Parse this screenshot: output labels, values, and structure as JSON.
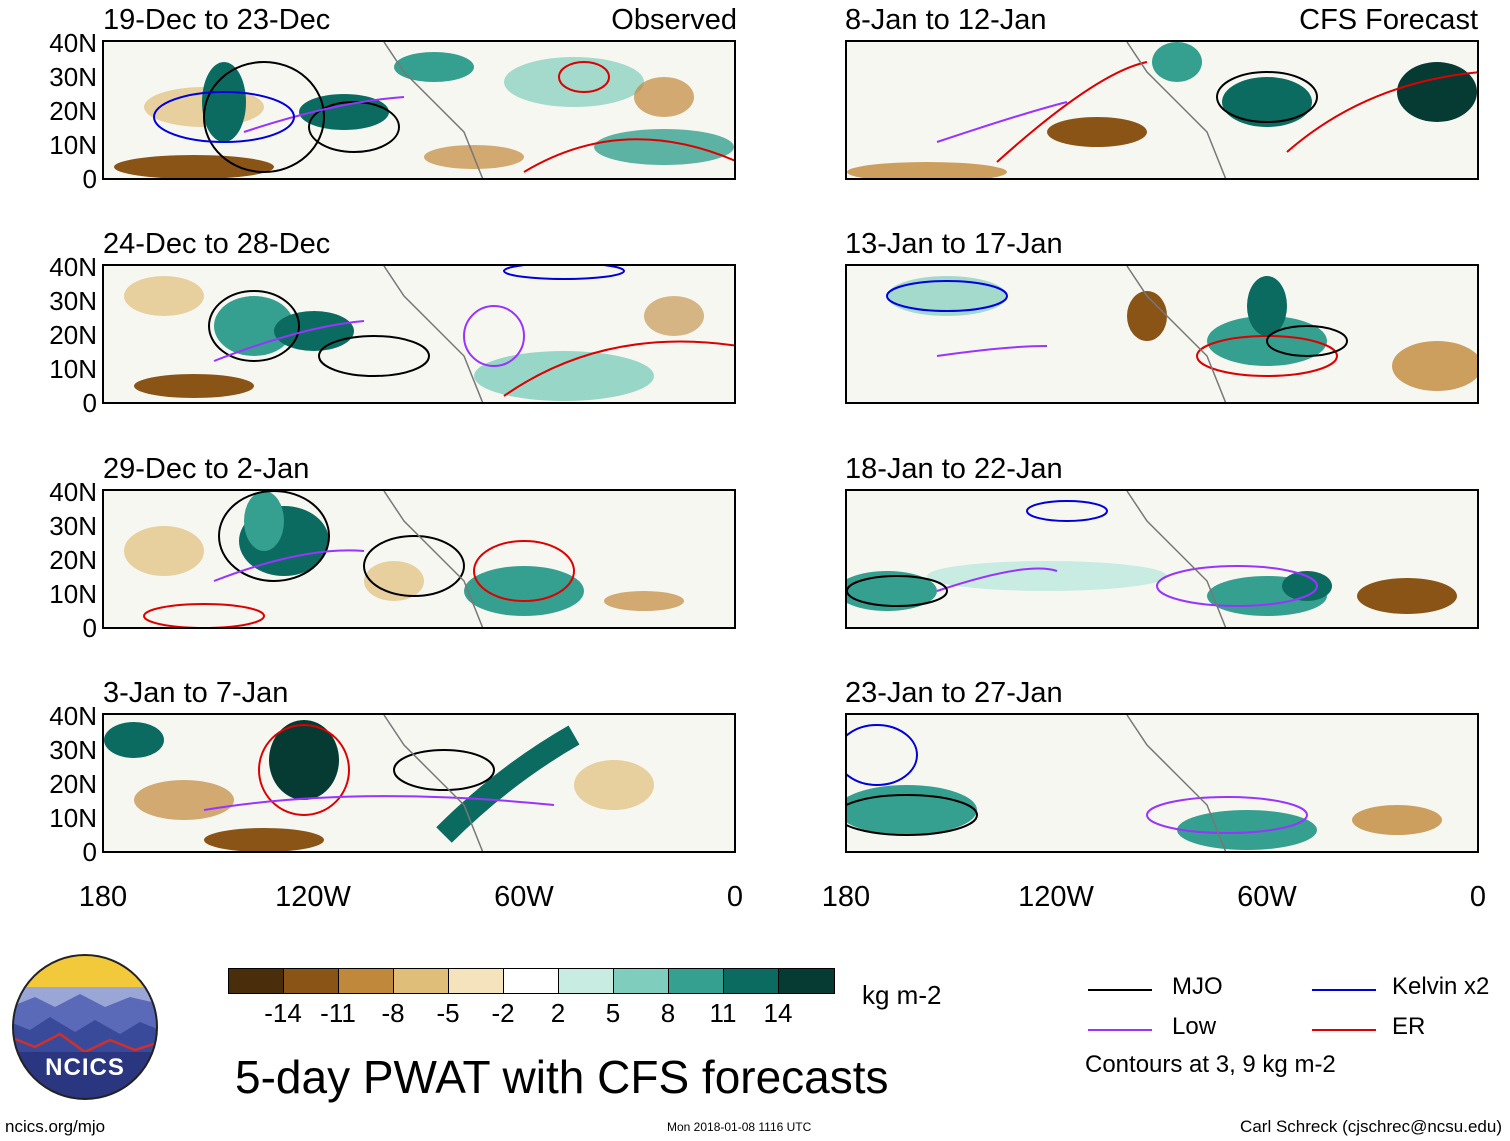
{
  "panels": {
    "observed": [
      {
        "title": "19-Dec to 23-Dec",
        "label": "Observed"
      },
      {
        "title": "24-Dec to 28-Dec",
        "label": ""
      },
      {
        "title": "29-Dec to 2-Jan",
        "label": ""
      },
      {
        "title": "3-Jan to 7-Jan",
        "label": ""
      }
    ],
    "forecast": [
      {
        "title": "8-Jan to 12-Jan",
        "label": "CFS Forecast"
      },
      {
        "title": "13-Jan to 17-Jan",
        "label": ""
      },
      {
        "title": "18-Jan to 22-Jan",
        "label": ""
      },
      {
        "title": "23-Jan to 27-Jan",
        "label": ""
      }
    ]
  },
  "lat_ticks": [
    "40N",
    "30N",
    "20N",
    "10N",
    "0"
  ],
  "lon_ticks": [
    "180",
    "120W",
    "60W",
    "0"
  ],
  "colorbar": {
    "unit": "kg m-2",
    "labels": [
      "-14",
      "-11",
      "-8",
      "-5",
      "-2",
      "2",
      "5",
      "8",
      "11",
      "14"
    ],
    "colors": [
      "#4a2d0a",
      "#8a5416",
      "#c0883a",
      "#dfbe7a",
      "#f4e3bd",
      "#ffffff",
      "#c8ebe2",
      "#7fcdbc",
      "#35a08f",
      "#0c6b60",
      "#063b33"
    ]
  },
  "legend": {
    "items": [
      {
        "name": "MJO",
        "color": "#000000"
      },
      {
        "name": "Kelvin x2",
        "color": "#0000dd"
      },
      {
        "name": "Low",
        "color": "#9933ff"
      },
      {
        "name": "ER",
        "color": "#dd0000"
      }
    ],
    "note": "Contours at 3, 9 kg m-2"
  },
  "logo_text": "NCICS",
  "main_title": "5-day PWAT with CFS forecasts",
  "footer": {
    "left": "ncics.org/mjo",
    "center": "Mon 2018-01-08 1116 UTC",
    "right": "Carl Schreck (cjschrec@ncsu.edu)"
  }
}
